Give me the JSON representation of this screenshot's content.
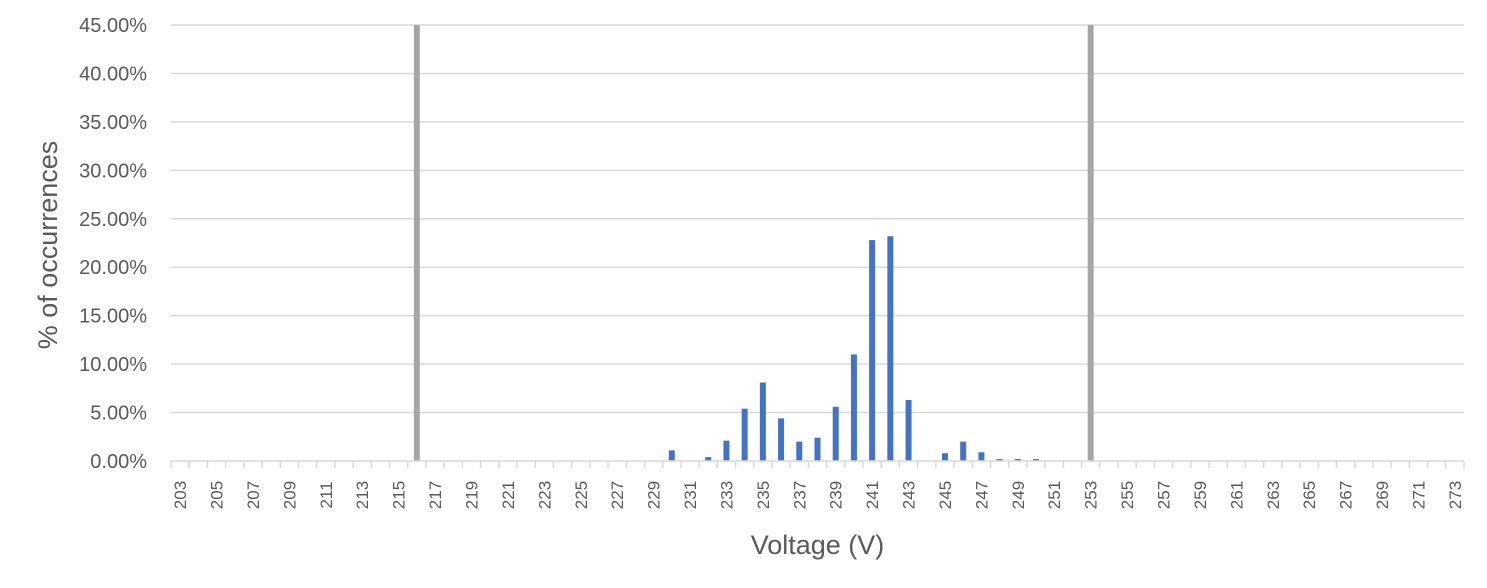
{
  "chart_data": {
    "type": "bar",
    "xlabel": "Voltage (V)",
    "ylabel": "% of occurrences",
    "ylim": [
      0,
      45
    ],
    "yticks": [
      0,
      5,
      10,
      15,
      20,
      25,
      30,
      35,
      40,
      45
    ],
    "ytick_labels": [
      "0.00%",
      "5.00%",
      "10.00%",
      "15.00%",
      "20.00%",
      "25.00%",
      "30.00%",
      "35.00%",
      "40.00%",
      "45.00%"
    ],
    "grid": true,
    "bar_color": "#4472C4",
    "limit_color": "#A6A6A6",
    "limit_lines": [
      216,
      253
    ],
    "categories": [
      203,
      204,
      205,
      206,
      207,
      208,
      209,
      210,
      211,
      212,
      213,
      214,
      215,
      216,
      217,
      218,
      219,
      220,
      221,
      222,
      223,
      224,
      225,
      226,
      227,
      228,
      229,
      230,
      231,
      232,
      233,
      234,
      235,
      236,
      237,
      238,
      239,
      240,
      241,
      242,
      243,
      244,
      245,
      246,
      247,
      248,
      249,
      250,
      251,
      252,
      253,
      254,
      255,
      256,
      257,
      258,
      259,
      260,
      261,
      262,
      263,
      264,
      265,
      266,
      267,
      268,
      269,
      270,
      271,
      272,
      273
    ],
    "x_tick_labels": [
      "203",
      "205",
      "207",
      "209",
      "211",
      "213",
      "215",
      "217",
      "219",
      "221",
      "223",
      "225",
      "227",
      "229",
      "231",
      "233",
      "235",
      "237",
      "239",
      "241",
      "243",
      "245",
      "247",
      "249",
      "251",
      "253",
      "255",
      "257",
      "259",
      "261",
      "263",
      "265",
      "267",
      "269",
      "271",
      "273"
    ],
    "values": [
      0,
      0,
      0,
      0,
      0,
      0,
      0,
      0,
      0,
      0,
      0,
      0,
      0,
      0,
      0,
      0,
      0,
      0,
      0,
      0,
      0,
      0,
      0,
      0,
      0,
      0,
      0,
      1.1,
      0,
      0.4,
      2.1,
      5.4,
      8.1,
      4.4,
      2.0,
      2.4,
      5.6,
      11.0,
      22.8,
      23.2,
      6.3,
      0,
      0.8,
      2.0,
      0.9,
      0.2,
      0.2,
      0.2,
      0,
      0,
      0,
      0,
      0,
      0,
      0,
      0,
      0,
      0,
      0,
      0,
      0,
      0,
      0,
      0,
      0,
      0,
      0,
      0,
      0,
      0,
      0
    ]
  }
}
